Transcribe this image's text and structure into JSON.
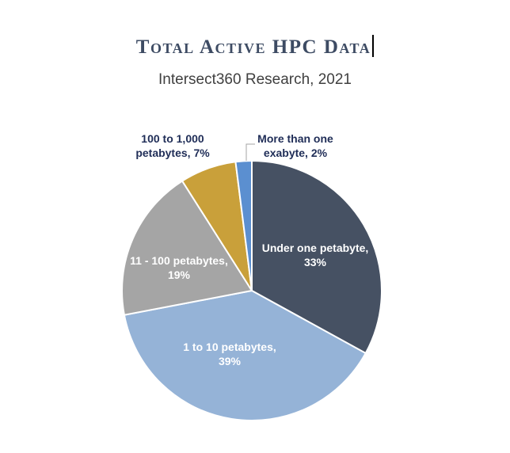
{
  "chart_data": {
    "type": "pie",
    "title": "Total Active HPC Data",
    "subtitle": "Intersect360 Research, 2021",
    "slices": [
      {
        "label_lines": [
          "Under one petabyte,",
          "33%"
        ],
        "value": 33,
        "color": "#465163",
        "text_color": "#ffffff",
        "outside": false
      },
      {
        "label_lines": [
          "1 to 10 petabytes,",
          "39%"
        ],
        "value": 39,
        "color": "#95b3d7",
        "text_color": "#ffffff",
        "outside": false
      },
      {
        "label_lines": [
          "11 - 100 petabytes,",
          "19%"
        ],
        "value": 19,
        "color": "#a5a5a5",
        "text_color": "#ffffff",
        "outside": false
      },
      {
        "label_lines": [
          "100 to 1,000",
          "petabytes, 7%"
        ],
        "value": 7,
        "color": "#c9a03a",
        "text_color": "#1f2d57",
        "outside": true
      },
      {
        "label_lines": [
          "More than one",
          "exabyte, 2%"
        ],
        "value": 2,
        "color": "#5b8fd0",
        "text_color": "#1f2d57",
        "outside": true
      }
    ]
  }
}
